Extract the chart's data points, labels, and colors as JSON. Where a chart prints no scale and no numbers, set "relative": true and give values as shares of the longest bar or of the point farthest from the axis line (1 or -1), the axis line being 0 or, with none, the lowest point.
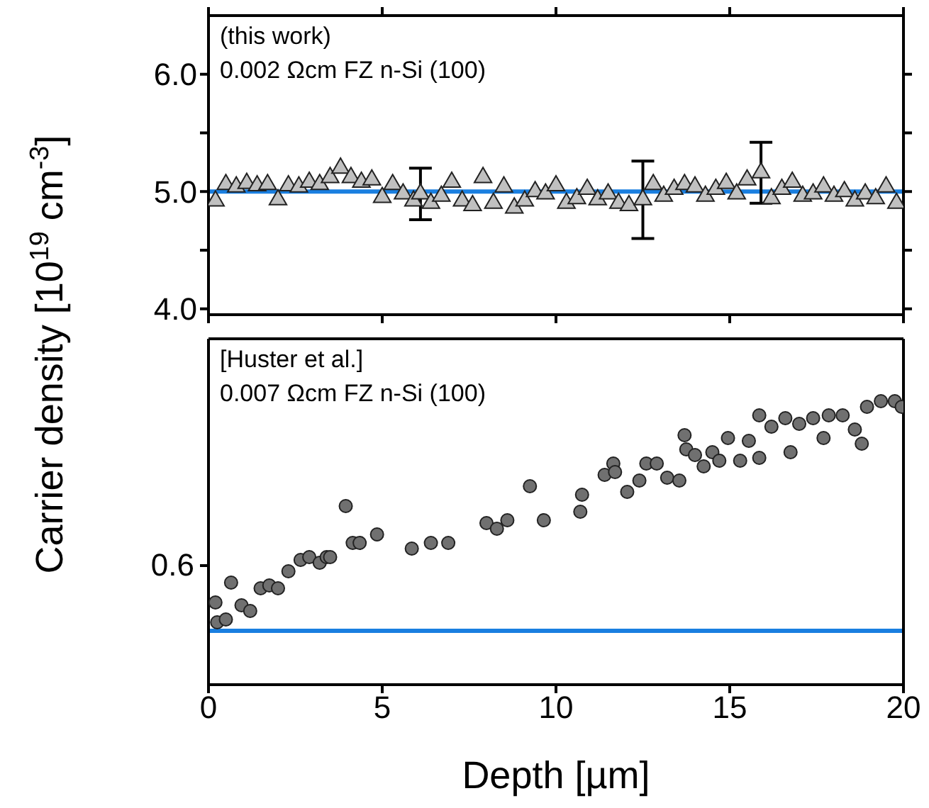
{
  "chart_data": [
    {
      "type": "scatter",
      "ylabel": "Carrier density [10$^{19}$ cm$^{-3}$]",
      "xlim": [
        0,
        20
      ],
      "xticks": [
        0,
        5,
        10,
        15,
        20
      ],
      "ylim": [
        3.95,
        6.5
      ],
      "yticks": [
        {
          "value": 4,
          "label": "4.0"
        },
        {
          "value": 4.5,
          "label": null
        },
        {
          "value": 5,
          "label": "5.0"
        },
        {
          "value": 5.5,
          "label": null
        },
        {
          "value": 6,
          "label": "6.0"
        }
      ],
      "tick_labels": "y",
      "marker": "triangle",
      "annotations": [
        "(this work)",
        "0.002 Ωcm FZ n-Si (100)"
      ],
      "ref_lines": [
        {
          "axis": "y",
          "value": 5.0,
          "color": "#1a7fe0"
        }
      ],
      "series": [
        {
          "color": "#c0c0c0",
          "x": [
            0.2,
            0.5,
            0.8,
            1.1,
            1.4,
            1.7,
            2.0,
            2.3,
            2.6,
            2.9,
            3.2,
            3.5,
            3.8,
            4.1,
            4.4,
            4.7,
            5.0,
            5.3,
            5.6,
            5.9,
            6.1,
            6.4,
            6.7,
            7.0,
            7.3,
            7.6,
            7.9,
            8.2,
            8.5,
            8.8,
            9.1,
            9.4,
            9.7,
            10.0,
            10.3,
            10.6,
            10.9,
            11.2,
            11.5,
            11.8,
            12.1,
            12.5,
            12.8,
            13.1,
            13.4,
            13.7,
            14.0,
            14.3,
            14.6,
            14.9,
            15.2,
            15.5,
            15.9,
            16.2,
            16.5,
            16.8,
            17.1,
            17.4,
            17.7,
            18.0,
            18.3,
            18.6,
            18.9,
            19.2,
            19.5,
            19.8
          ],
          "values": [
            4.92,
            5.06,
            5.04,
            5.07,
            5.05,
            5.06,
            4.93,
            5.05,
            5.04,
            5.08,
            5.06,
            5.12,
            5.2,
            5.12,
            5.08,
            5.1,
            4.95,
            5.06,
            4.98,
            4.92,
            4.98,
            4.9,
            4.96,
            5.08,
            4.92,
            4.88,
            5.12,
            4.9,
            5.04,
            4.86,
            4.92,
            5.0,
            4.98,
            5.05,
            4.9,
            4.94,
            5.02,
            4.93,
            4.98,
            4.9,
            4.88,
            4.93,
            5.06,
            4.96,
            5.02,
            5.06,
            5.04,
            4.96,
            5.02,
            5.07,
            4.98,
            5.1,
            5.16,
            4.94,
            5.02,
            5.08,
            4.96,
            4.98,
            5.04,
            4.96,
            5.0,
            4.92,
            4.98,
            4.94,
            5.04,
            4.9
          ],
          "errors": [
            null,
            null,
            null,
            null,
            null,
            null,
            null,
            null,
            null,
            null,
            null,
            null,
            null,
            null,
            null,
            null,
            null,
            null,
            null,
            null,
            0.22,
            null,
            null,
            null,
            null,
            null,
            null,
            null,
            null,
            null,
            null,
            null,
            null,
            null,
            null,
            null,
            null,
            null,
            null,
            null,
            null,
            0.33,
            null,
            null,
            null,
            null,
            null,
            null,
            null,
            null,
            null,
            null,
            0.26,
            null,
            null,
            null,
            null,
            null,
            null,
            null,
            null,
            null,
            null,
            null,
            null,
            null
          ]
        }
      ]
    },
    {
      "type": "scatter",
      "xlabel": "Depth [µm]",
      "xlim": [
        0,
        20
      ],
      "xticks": [
        0,
        5,
        10,
        15,
        20
      ],
      "relative": true,
      "tick_labels": "x",
      "marker": "circle",
      "annotations": [
        "[Huster et al.]",
        "0.007 Ωcm FZ n-Si (100)",
        "0.6"
      ],
      "ref_lines": [
        {
          "axis": "y",
          "value": 0.19,
          "color": "#1a7fe0"
        }
      ],
      "series": [
        {
          "color": "#707070",
          "x": [
            0.2,
            0.25,
            0.5,
            0.65,
            0.95,
            1.2,
            1.5,
            1.75,
            2.0,
            2.3,
            2.65,
            2.9,
            3.2,
            3.4,
            3.5,
            3.95,
            4.15,
            4.35,
            4.85,
            5.85,
            6.4,
            6.9,
            8.0,
            8.3,
            8.6,
            9.25,
            9.65,
            10.7,
            10.75,
            11.4,
            11.65,
            11.7,
            12.05,
            12.4,
            12.6,
            12.9,
            13.2,
            13.55,
            13.7,
            13.75,
            14.0,
            14.25,
            14.5,
            14.7,
            14.95,
            15.3,
            15.55,
            15.85,
            15.85,
            16.2,
            16.6,
            16.75,
            17.0,
            17.4,
            17.7,
            17.85,
            18.25,
            18.6,
            18.8,
            18.95,
            19.35,
            19.75,
            19.95
          ],
          "values": [
            0.29,
            0.22,
            0.23,
            0.36,
            0.28,
            0.26,
            0.34,
            0.35,
            0.34,
            0.4,
            0.44,
            0.45,
            0.43,
            0.45,
            0.45,
            0.63,
            0.5,
            0.5,
            0.53,
            0.48,
            0.5,
            0.5,
            0.57,
            0.55,
            0.58,
            0.7,
            0.58,
            0.61,
            0.67,
            0.74,
            0.78,
            0.75,
            0.68,
            0.72,
            0.78,
            0.78,
            0.73,
            0.72,
            0.88,
            0.83,
            0.81,
            0.77,
            0.82,
            0.79,
            0.87,
            0.79,
            0.86,
            0.95,
            0.8,
            0.91,
            0.94,
            0.82,
            0.92,
            0.94,
            0.87,
            0.95,
            0.95,
            0.9,
            0.85,
            0.98,
            1.0,
            1.0,
            0.98
          ]
        }
      ]
    }
  ]
}
